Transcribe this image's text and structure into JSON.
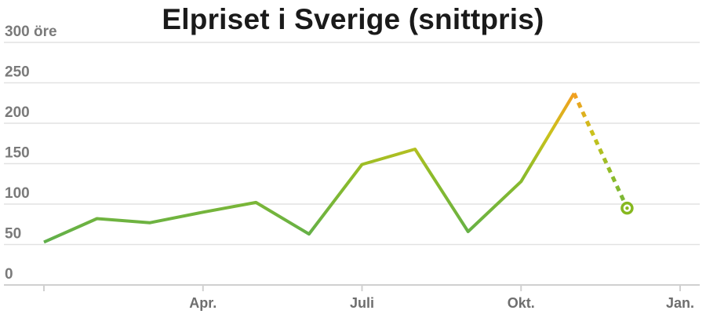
{
  "chart_data": {
    "type": "line",
    "title": "Elpriset i Sverige (snittpris)",
    "ylim": [
      0,
      300
    ],
    "y_ticks": [
      {
        "value": 0,
        "label": "0"
      },
      {
        "value": 50,
        "label": "50"
      },
      {
        "value": 100,
        "label": "100"
      },
      {
        "value": 150,
        "label": "150"
      },
      {
        "value": 200,
        "label": "200"
      },
      {
        "value": 250,
        "label": "250"
      },
      {
        "value": 300,
        "label": "300 öre"
      }
    ],
    "x_ticks": [
      {
        "month": 0,
        "label": ""
      },
      {
        "month": 3,
        "label": "Apr."
      },
      {
        "month": 6,
        "label": "Juli"
      },
      {
        "month": 9,
        "label": "Okt."
      },
      {
        "month": 12,
        "label": "Jan."
      }
    ],
    "series": [
      {
        "style": "solid",
        "points": [
          {
            "month": 0,
            "value": 53
          },
          {
            "month": 1,
            "value": 82
          },
          {
            "month": 2,
            "value": 77
          },
          {
            "month": 3,
            "value": 90
          },
          {
            "month": 4,
            "value": 102
          },
          {
            "month": 5,
            "value": 63
          },
          {
            "month": 6,
            "value": 149
          },
          {
            "month": 7,
            "value": 168
          },
          {
            "month": 8,
            "value": 66
          },
          {
            "month": 9,
            "value": 128
          },
          {
            "month": 10,
            "value": 237
          }
        ]
      },
      {
        "style": "dotted",
        "points": [
          {
            "month": 10,
            "value": 237
          },
          {
            "month": 11,
            "value": 95
          }
        ],
        "end_marker": "circle"
      }
    ],
    "grid": true,
    "colors": {
      "low": "#5cae4e",
      "mid": "#c9c21c",
      "high": "#f0a020",
      "grid": "#e2e2e2",
      "axis": "#d0d0d0"
    }
  }
}
